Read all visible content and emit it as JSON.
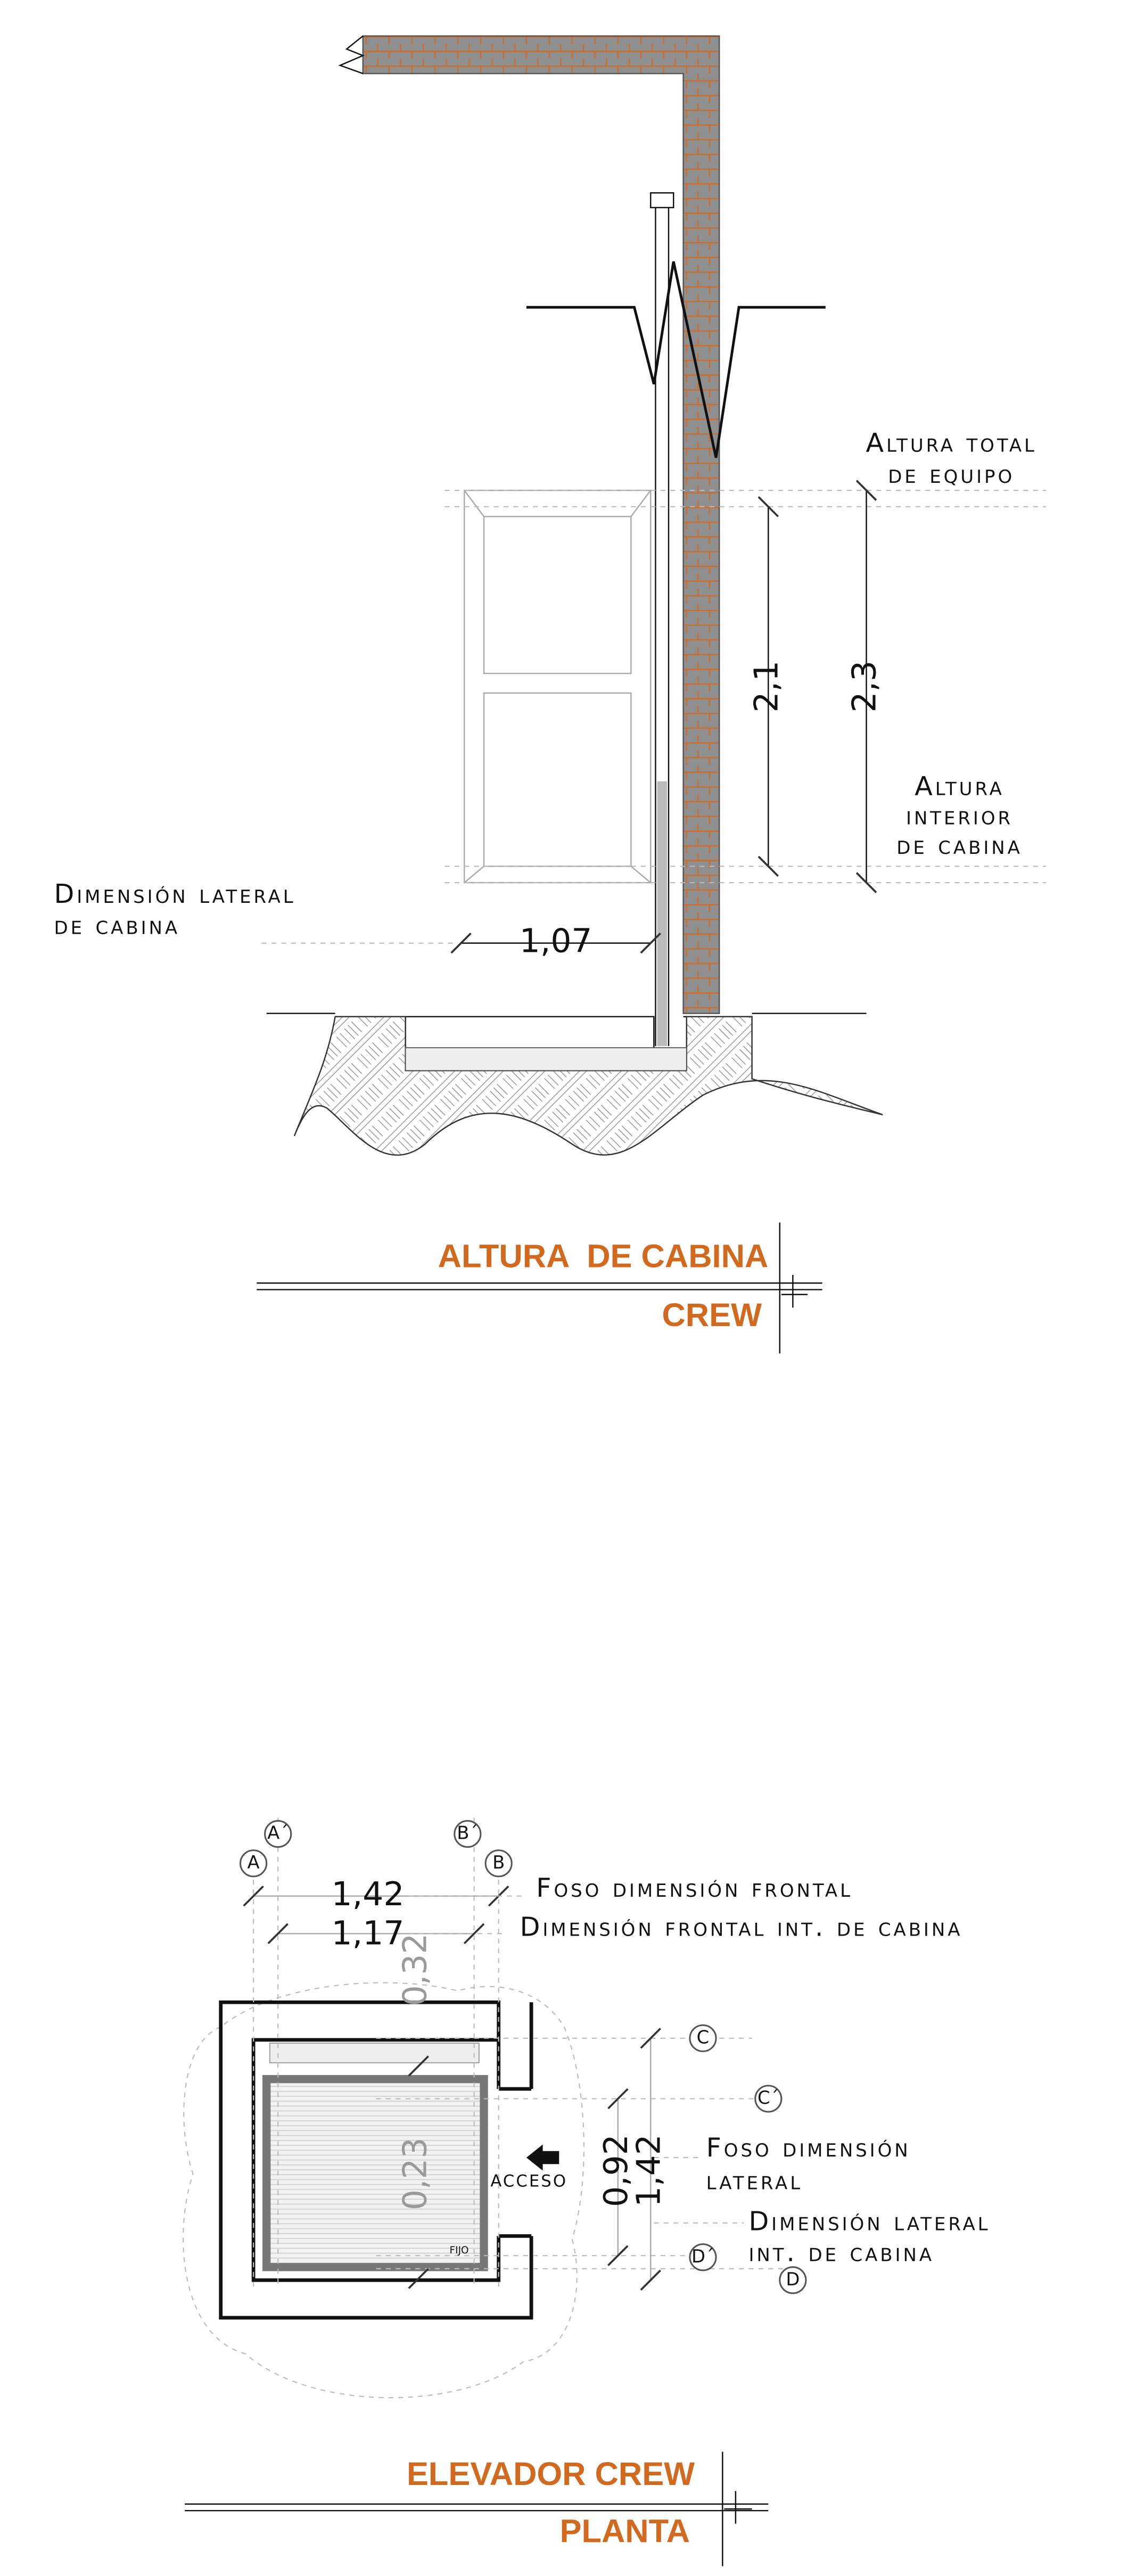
{
  "elevation": {
    "title": "ALTURA  DE CABINA",
    "subtitle": "CREW",
    "total_height": {
      "lines": [
        "Altura total",
        "de equipo"
      ],
      "value": "2,3"
    },
    "interior_height": {
      "lines": [
        "Altura",
        "interior",
        "de cabina"
      ],
      "value": "2,1"
    },
    "lateral": {
      "lines": [
        "Dimensión lateral",
        "de cabina"
      ],
      "value": "1,07"
    }
  },
  "plan": {
    "title": "ELEVADOR CREW",
    "subtitle": "PLANTA",
    "axes": [
      "A´",
      "B´",
      "A",
      "B",
      "C",
      "C´",
      "D´",
      "D"
    ],
    "front_pit": {
      "label": "Foso dimensión frontal",
      "value": "1,42"
    },
    "front_cabin": {
      "label": "Dimensión frontal int. de cabina",
      "value": "1,17"
    },
    "lateral_pit": {
      "lines": [
        "Foso dimensión",
        "lateral"
      ],
      "value": "1,42"
    },
    "lateral_cabin": {
      "lines": [
        "Dimensión lateral",
        "int. de cabina"
      ],
      "value": "0,92"
    },
    "offsets": [
      "0,32",
      "0,23"
    ],
    "access": "ACCESO",
    "fixed": "FIJO"
  }
}
